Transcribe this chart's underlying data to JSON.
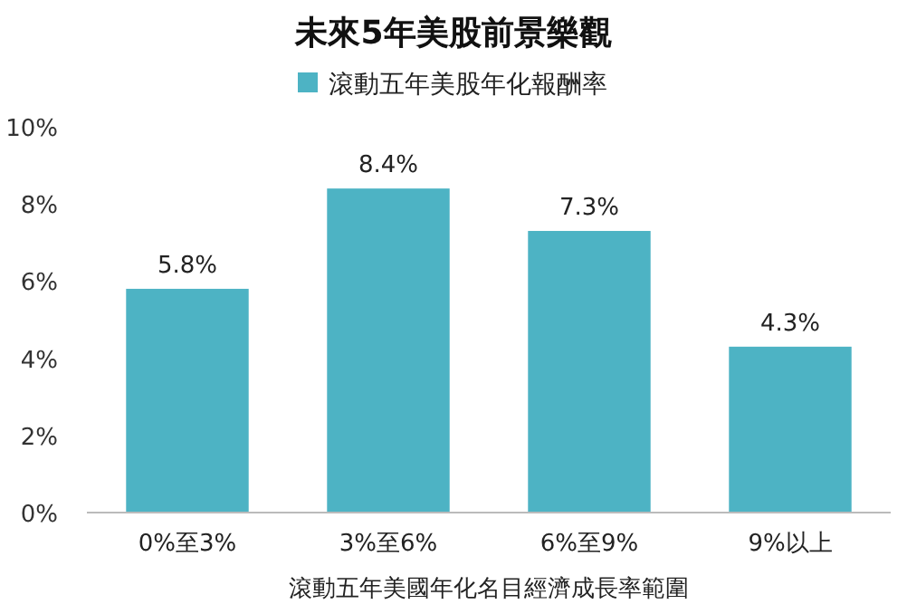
{
  "chart_data": {
    "type": "bar",
    "title": "未來5年美股前景樂觀",
    "xlabel": "滾動五年美國年化名目經濟成長率範圍",
    "categories": [
      "0%至3%",
      "3%至6%",
      "6%至9%",
      "9%以上"
    ],
    "series": [
      {
        "name": "滾動五年美股年化報酬率",
        "color": "#4db3c4",
        "values": [
          5.8,
          8.4,
          7.3,
          4.3
        ],
        "value_labels": [
          "5.8%",
          "8.4%",
          "7.3%",
          "4.3%"
        ]
      }
    ],
    "ylim": [
      0,
      10
    ],
    "yticks": [
      {
        "value": 0,
        "label": "0%"
      },
      {
        "value": 2,
        "label": "2%"
      },
      {
        "value": 4,
        "label": "4%"
      },
      {
        "value": 6,
        "label": "6%"
      },
      {
        "value": 8,
        "label": "8%"
      },
      {
        "value": 10,
        "label": "10%"
      }
    ],
    "grid": false,
    "legend": "top"
  }
}
